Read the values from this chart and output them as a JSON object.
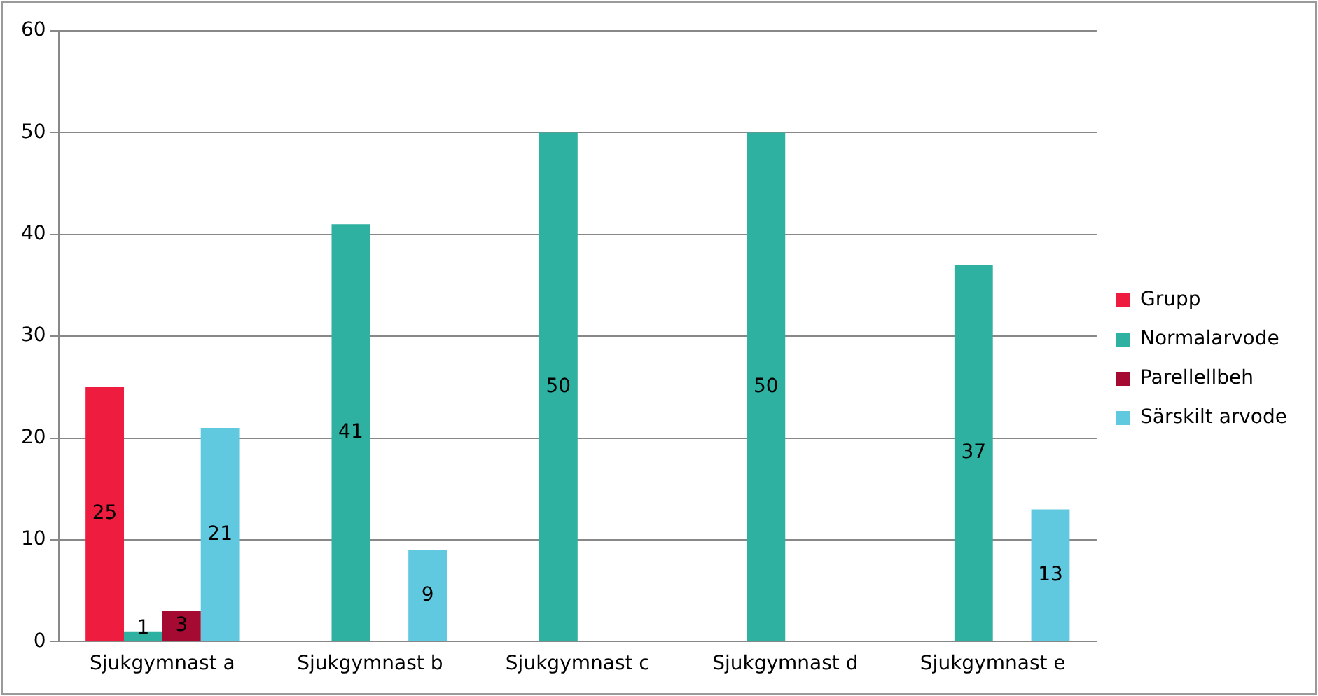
{
  "chart_data": {
    "type": "bar",
    "categories": [
      "Sjukgymnast a",
      "Sjukgymnast b",
      "Sjukgymnast c",
      "Sjukgymnast d",
      "Sjukgymnast e"
    ],
    "series": [
      {
        "name": "Grupp",
        "color": "#ee1c3e",
        "values": [
          25,
          null,
          null,
          null,
          null
        ]
      },
      {
        "name": "Normalarvode",
        "color": "#2eb1a1",
        "values": [
          1,
          41,
          50,
          50,
          37
        ]
      },
      {
        "name": "Parellellbeh",
        "color": "#a50a32",
        "values": [
          3,
          null,
          null,
          null,
          null
        ]
      },
      {
        "name": "Särskilt arvode",
        "color": "#60c9e0",
        "values": [
          21,
          9,
          null,
          null,
          13
        ]
      }
    ],
    "ylim": [
      0,
      60
    ],
    "yticks": [
      0,
      10,
      20,
      30,
      40,
      50,
      60
    ],
    "grid": "y",
    "legend": "right",
    "data_labels": true
  }
}
